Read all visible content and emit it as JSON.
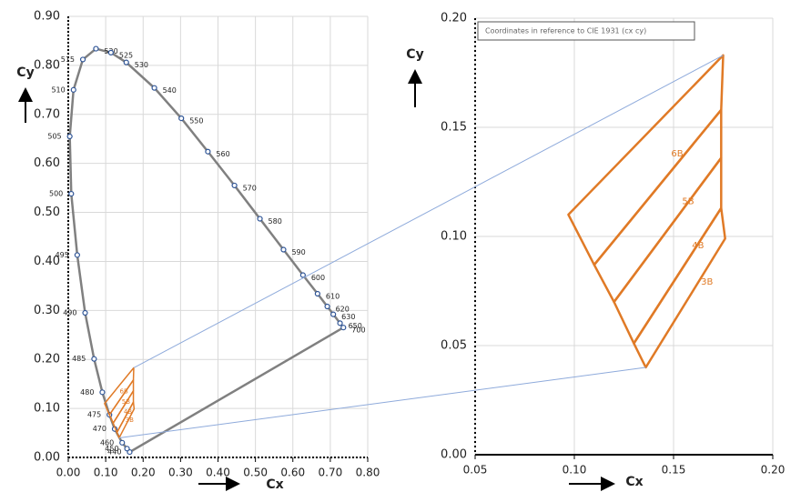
{
  "chart_data": [
    {
      "type": "line",
      "x_label": "Cx",
      "y_label": "Cy",
      "xlim": [
        0,
        0.8
      ],
      "ylim": [
        0,
        0.9
      ],
      "xticks": [
        {
          "value": 0,
          "label": "0.00"
        },
        {
          "value": 0.1,
          "label": "0.10"
        },
        {
          "value": 0.2,
          "label": "0.20"
        },
        {
          "value": 0.3,
          "label": "0.30"
        },
        {
          "value": 0.4,
          "label": "0.40"
        },
        {
          "value": 0.5,
          "label": "0.50"
        },
        {
          "value": 0.6,
          "label": "0.60"
        },
        {
          "value": 0.7,
          "label": "0.70"
        },
        {
          "value": 0.8,
          "label": "0.80"
        }
      ],
      "yticks": [
        {
          "value": 0,
          "label": "0.00"
        },
        {
          "value": 0.1,
          "label": "0.10"
        },
        {
          "value": 0.2,
          "label": "0.20"
        },
        {
          "value": 0.3,
          "label": "0.30"
        },
        {
          "value": 0.4,
          "label": "0.40"
        },
        {
          "value": 0.5,
          "label": "0.50"
        },
        {
          "value": 0.6,
          "label": "0.60"
        },
        {
          "value": 0.7,
          "label": "0.70"
        },
        {
          "value": 0.8,
          "label": "0.80"
        },
        {
          "value": 0.9,
          "label": "0.90"
        }
      ],
      "grid": true,
      "color": "#808080",
      "marker_color": "#2f5597",
      "x": [
        0.164,
        0.157,
        0.144,
        0.124,
        0.11,
        0.091,
        0.069,
        0.045,
        0.024,
        0.008,
        0.004,
        0.014,
        0.039,
        0.074,
        0.114,
        0.155,
        0.23,
        0.302,
        0.373,
        0.444,
        0.512,
        0.575,
        0.627,
        0.666,
        0.692,
        0.708,
        0.726,
        0.735
      ],
      "values": [
        0.011,
        0.018,
        0.03,
        0.058,
        0.087,
        0.133,
        0.201,
        0.295,
        0.413,
        0.538,
        0.655,
        0.75,
        0.812,
        0.834,
        0.826,
        0.806,
        0.754,
        0.692,
        0.624,
        0.555,
        0.487,
        0.424,
        0.372,
        0.334,
        0.308,
        0.292,
        0.274,
        0.265
      ],
      "labels": [
        "440",
        "450",
        "460",
        "470",
        "475",
        "480",
        "485",
        "490",
        "495",
        "500",
        "505",
        "510",
        "515",
        "520",
        "525",
        "530",
        "540",
        "550",
        "560",
        "570",
        "580",
        "590",
        "600",
        "610",
        "620",
        "630",
        "650",
        "700"
      ]
    },
    {
      "type": "polygon",
      "x_label": "Cx",
      "y_label": "Cy",
      "note": "Coordinates in reference to CIE 1931 (cx cy)",
      "xlim": [
        0.05,
        0.2
      ],
      "ylim": [
        0,
        0.2
      ],
      "xticks": [
        {
          "value": 0.05,
          "label": "0.05"
        },
        {
          "value": 0.1,
          "label": "0.10"
        },
        {
          "value": 0.15,
          "label": "0.15"
        },
        {
          "value": 0.2,
          "label": "0.20"
        }
      ],
      "yticks": [
        {
          "value": 0,
          "label": "0.00"
        },
        {
          "value": 0.05,
          "label": "0.05"
        },
        {
          "value": 0.1,
          "label": "0.10"
        },
        {
          "value": 0.15,
          "label": "0.15"
        },
        {
          "value": 0.2,
          "label": "0.20"
        }
      ],
      "grid": true,
      "color": "#e07a26",
      "regions": [
        {
          "name": "6B",
          "x": [
            0.175,
            0.097,
            0.11,
            0.174
          ],
          "y": [
            0.183,
            0.11,
            0.087,
            0.158
          ]
        },
        {
          "name": "5B",
          "x": [
            0.174,
            0.11,
            0.12,
            0.174
          ],
          "y": [
            0.158,
            0.087,
            0.07,
            0.136
          ]
        },
        {
          "name": "4B",
          "x": [
            0.174,
            0.12,
            0.13,
            0.174
          ],
          "y": [
            0.136,
            0.07,
            0.051,
            0.113
          ]
        },
        {
          "name": "3B",
          "x": [
            0.174,
            0.13,
            0.136,
            0.176
          ],
          "y": [
            0.113,
            0.051,
            0.04,
            0.099
          ]
        }
      ]
    }
  ]
}
